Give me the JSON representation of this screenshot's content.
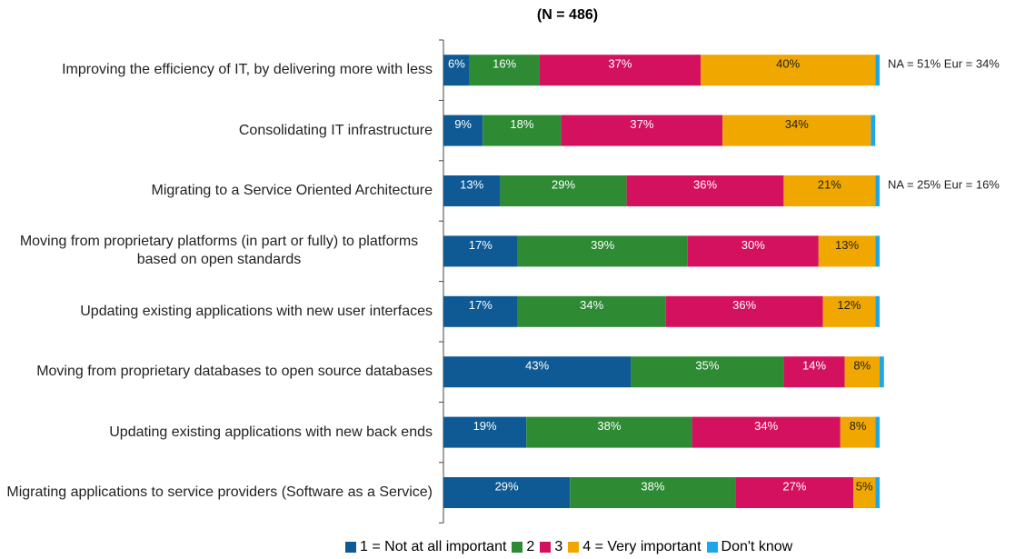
{
  "chart_data": {
    "type": "stacked_bar_horizontal",
    "title": "(N = 486)",
    "categories": [
      "Improving the efficiency of IT, by delivering more with less",
      "Consolidating IT infrastructure",
      "Migrating to a Service Oriented Architecture",
      "Moving from proprietary platforms (in part or fully) to platforms based on open standards",
      "Updating existing applications with new user interfaces",
      "Moving from proprietary databases to open source databases",
      "Updating existing applications with new back ends",
      "Migrating applications to service providers (Software as a Service)"
    ],
    "series": [
      {
        "name": "1 = Not at all important",
        "color": "#0f5a94",
        "values": [
          6,
          9,
          13,
          17,
          17,
          43,
          19,
          29
        ],
        "value_labels": [
          "6%",
          "9%",
          "13%",
          "17%",
          "17%",
          "43%",
          "19%",
          "29%"
        ]
      },
      {
        "name": "2",
        "color": "#2e8b34",
        "values": [
          16,
          18,
          29,
          39,
          34,
          35,
          38,
          38
        ],
        "value_labels": [
          "16%",
          "18%",
          "29%",
          "39%",
          "34%",
          "35%",
          "38%",
          "38%"
        ]
      },
      {
        "name": "3",
        "color": "#d4115f",
        "values": [
          37,
          37,
          36,
          30,
          36,
          14,
          34,
          27
        ],
        "value_labels": [
          "37%",
          "37%",
          "36%",
          "30%",
          "36%",
          "14%",
          "34%",
          "27%"
        ]
      },
      {
        "name": "4 = Very important",
        "color": "#f0a800",
        "values": [
          40,
          34,
          21,
          13,
          12,
          8,
          8,
          5
        ],
        "value_labels": [
          "40%",
          "34%",
          "21%",
          "13%",
          "12%",
          "8%",
          "8%",
          "5%"
        ]
      },
      {
        "name": "Don't know",
        "color": "#1ea7e8",
        "values": [
          1,
          1,
          1,
          1,
          1,
          1,
          1,
          1
        ]
      }
    ],
    "annotations": [
      "NA = 51% Eur = 34%",
      null,
      "NA = 25% Eur = 16%",
      null,
      null,
      null,
      null,
      null
    ],
    "xlim": [
      0,
      100
    ]
  }
}
